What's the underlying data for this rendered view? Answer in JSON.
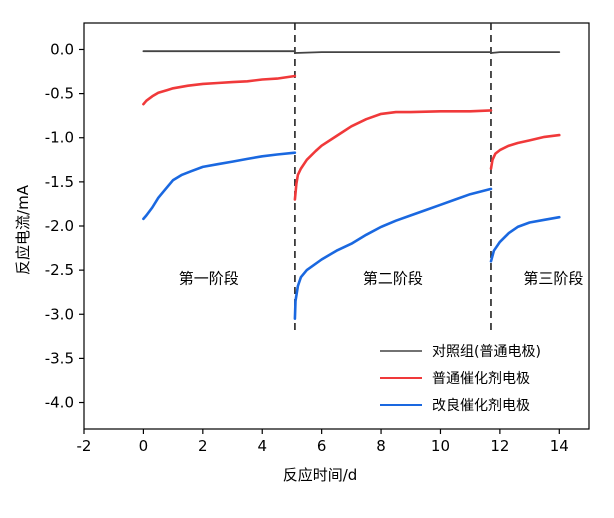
{
  "chart_data": {
    "type": "line",
    "title": "",
    "xlabel": "反应时间/d",
    "ylabel": "反应电流/mA",
    "xlim": [
      -2,
      15
    ],
    "ylim": [
      -4.3,
      0.3
    ],
    "xticks": [
      -2,
      0,
      2,
      4,
      6,
      8,
      10,
      12,
      14
    ],
    "yticks": [
      0.0,
      -0.5,
      -1.0,
      -1.5,
      -2.0,
      -2.5,
      -3.0,
      -3.5,
      -4.0
    ],
    "ytick_labels": [
      "0.0",
      "-0.5",
      "-1.0",
      "-1.5",
      "-2.0",
      "-2.5",
      "-3.0",
      "-3.5",
      "-4.0"
    ],
    "grid": false,
    "legend_position": "bottom-right",
    "stage_boundaries": [
      5.1,
      11.7
    ],
    "stage_labels": [
      {
        "text": "第一阶段",
        "x": 2.2,
        "y": -2.65
      },
      {
        "text": "第二阶段",
        "x": 8.4,
        "y": -2.65
      },
      {
        "text": "第三阶段",
        "x": 13.8,
        "y": -2.65
      }
    ],
    "series": [
      {
        "name": "对照组(普通电极)",
        "color": "#444444",
        "segments": [
          [
            [
              0,
              -0.02
            ],
            [
              1,
              -0.02
            ],
            [
              2,
              -0.02
            ],
            [
              3,
              -0.02
            ],
            [
              4,
              -0.02
            ],
            [
              5.1,
              -0.02
            ]
          ],
          [
            [
              5.1,
              -0.04
            ],
            [
              6,
              -0.03
            ],
            [
              7,
              -0.03
            ],
            [
              8,
              -0.03
            ],
            [
              9,
              -0.03
            ],
            [
              10,
              -0.03
            ],
            [
              11,
              -0.03
            ],
            [
              11.7,
              -0.03
            ]
          ],
          [
            [
              11.7,
              -0.04
            ],
            [
              12,
              -0.03
            ],
            [
              13,
              -0.03
            ],
            [
              14,
              -0.03
            ]
          ]
        ]
      },
      {
        "name": "普通催化剂电极",
        "color": "#f0393a",
        "segments": [
          [
            [
              0,
              -0.62
            ],
            [
              0.1,
              -0.58
            ],
            [
              0.3,
              -0.53
            ],
            [
              0.5,
              -0.49
            ],
            [
              0.8,
              -0.46
            ],
            [
              1,
              -0.44
            ],
            [
              1.5,
              -0.41
            ],
            [
              2,
              -0.39
            ],
            [
              2.5,
              -0.38
            ],
            [
              3,
              -0.37
            ],
            [
              3.5,
              -0.36
            ],
            [
              4,
              -0.34
            ],
            [
              4.5,
              -0.33
            ],
            [
              5.1,
              -0.3
            ]
          ],
          [
            [
              5.1,
              -1.7
            ],
            [
              5.15,
              -1.52
            ],
            [
              5.2,
              -1.42
            ],
            [
              5.3,
              -1.35
            ],
            [
              5.5,
              -1.25
            ],
            [
              5.8,
              -1.15
            ],
            [
              6,
              -1.09
            ],
            [
              6.5,
              -0.98
            ],
            [
              7,
              -0.87
            ],
            [
              7.5,
              -0.79
            ],
            [
              8,
              -0.73
            ],
            [
              8.5,
              -0.71
            ],
            [
              9,
              -0.71
            ],
            [
              10,
              -0.7
            ],
            [
              11,
              -0.7
            ],
            [
              11.7,
              -0.69
            ]
          ],
          [
            [
              11.7,
              -1.35
            ],
            [
              11.75,
              -1.25
            ],
            [
              11.85,
              -1.18
            ],
            [
              12,
              -1.14
            ],
            [
              12.3,
              -1.09
            ],
            [
              12.6,
              -1.06
            ],
            [
              13,
              -1.03
            ],
            [
              13.5,
              -0.99
            ],
            [
              14,
              -0.97
            ]
          ]
        ]
      },
      {
        "name": "改良催化剂电极",
        "color": "#1a68e0",
        "segments": [
          [
            [
              0,
              -1.92
            ],
            [
              0.1,
              -1.88
            ],
            [
              0.3,
              -1.79
            ],
            [
              0.5,
              -1.68
            ],
            [
              0.7,
              -1.6
            ],
            [
              1,
              -1.48
            ],
            [
              1.3,
              -1.42
            ],
            [
              1.6,
              -1.38
            ],
            [
              2,
              -1.33
            ],
            [
              2.5,
              -1.3
            ],
            [
              3,
              -1.27
            ],
            [
              3.5,
              -1.24
            ],
            [
              4,
              -1.21
            ],
            [
              4.5,
              -1.19
            ],
            [
              5.1,
              -1.17
            ]
          ],
          [
            [
              5.1,
              -3.05
            ],
            [
              5.12,
              -2.85
            ],
            [
              5.2,
              -2.68
            ],
            [
              5.3,
              -2.58
            ],
            [
              5.5,
              -2.5
            ],
            [
              6,
              -2.38
            ],
            [
              6.5,
              -2.28
            ],
            [
              7,
              -2.2
            ],
            [
              7.5,
              -2.1
            ],
            [
              8,
              -2.01
            ],
            [
              8.5,
              -1.94
            ],
            [
              9,
              -1.88
            ],
            [
              9.5,
              -1.82
            ],
            [
              10,
              -1.76
            ],
            [
              10.5,
              -1.7
            ],
            [
              11,
              -1.64
            ],
            [
              11.7,
              -1.58
            ]
          ],
          [
            [
              11.7,
              -2.4
            ],
            [
              11.8,
              -2.28
            ],
            [
              12,
              -2.18
            ],
            [
              12.3,
              -2.08
            ],
            [
              12.6,
              -2.01
            ],
            [
              13,
              -1.96
            ],
            [
              13.5,
              -1.93
            ],
            [
              14,
              -1.9
            ]
          ]
        ]
      }
    ]
  }
}
